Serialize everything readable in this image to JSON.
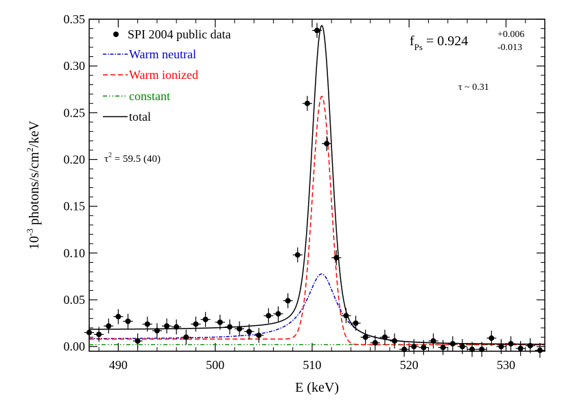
{
  "chart_data": {
    "type": "scatter",
    "title": "",
    "xlabel": "E (keV)",
    "ylabel_parts": {
      "prefix": "10",
      "exp": "-3",
      "mid": " photons/s/cm",
      "exp2": "2",
      "suffix": "/keV"
    },
    "xlim": [
      487,
      534
    ],
    "ylim": [
      -0.005,
      0.35
    ],
    "xticks": [
      490,
      500,
      510,
      520,
      530
    ],
    "xtick_labels": [
      "490",
      "500",
      "510",
      "520",
      "530"
    ],
    "yticks": [
      0.0,
      0.05,
      0.1,
      0.15,
      0.2,
      0.25,
      0.3,
      0.35
    ],
    "ytick_labels": [
      "0.00",
      "0.05",
      "0.10",
      "0.15",
      "0.20",
      "0.25",
      "0.30",
      "0.35"
    ],
    "legend": [
      {
        "label": "SPI 2004 public data",
        "style": "point",
        "color": "#000000"
      },
      {
        "label": "Warm neutral",
        "style": "dashdot-blue",
        "color": "#0000cc"
      },
      {
        "label": "Warm ionized",
        "style": "dashed-red",
        "color": "#ff0000"
      },
      {
        "label": "constant",
        "style": "dashdot-green",
        "color": "#008800"
      },
      {
        "label": "total",
        "style": "solid",
        "color": "#000000"
      }
    ],
    "annotations": {
      "fps_base": "f",
      "fps_sub": "Ps",
      "fps_eq": " = 0.924",
      "fps_plus": "+0.006",
      "fps_minus": "-0.013",
      "tau": "τ ~ 0.31",
      "chi_base": "τ",
      "chi_sup": "2",
      "chi_rest": " = 59.5 (40)"
    },
    "data_points": [
      {
        "x": 487,
        "y": 0.015
      },
      {
        "x": 488,
        "y": 0.013
      },
      {
        "x": 489,
        "y": 0.022
      },
      {
        "x": 490,
        "y": 0.032
      },
      {
        "x": 491,
        "y": 0.027
      },
      {
        "x": 492,
        "y": 0.006
      },
      {
        "x": 493,
        "y": 0.024
      },
      {
        "x": 494,
        "y": 0.017
      },
      {
        "x": 495,
        "y": 0.022
      },
      {
        "x": 496,
        "y": 0.021
      },
      {
        "x": 497,
        "y": 0.01
      },
      {
        "x": 498,
        "y": 0.024
      },
      {
        "x": 499,
        "y": 0.029
      },
      {
        "x": 500.5,
        "y": 0.026
      },
      {
        "x": 501.5,
        "y": 0.021
      },
      {
        "x": 502.5,
        "y": 0.019
      },
      {
        "x": 503.5,
        "y": 0.016
      },
      {
        "x": 504.5,
        "y": 0.012
      },
      {
        "x": 505.5,
        "y": 0.033
      },
      {
        "x": 506.5,
        "y": 0.035
      },
      {
        "x": 507.5,
        "y": 0.049
      },
      {
        "x": 508.5,
        "y": 0.098
      },
      {
        "x": 509.5,
        "y": 0.26
      },
      {
        "x": 510.5,
        "y": 0.338
      },
      {
        "x": 511.5,
        "y": 0.217
      },
      {
        "x": 512.5,
        "y": 0.095
      },
      {
        "x": 513.5,
        "y": 0.033
      },
      {
        "x": 514.5,
        "y": 0.025
      },
      {
        "x": 515.5,
        "y": 0.01
      },
      {
        "x": 516.5,
        "y": 0.004
      },
      {
        "x": 517.5,
        "y": 0.01
      },
      {
        "x": 518.5,
        "y": 0.006
      },
      {
        "x": 519.5,
        "y": -0.003
      },
      {
        "x": 520.5,
        "y": 0.0
      },
      {
        "x": 521.5,
        "y": -0.001
      },
      {
        "x": 522.5,
        "y": 0.006
      },
      {
        "x": 523.5,
        "y": -0.001
      },
      {
        "x": 524.5,
        "y": 0.003
      },
      {
        "x": 525.5,
        "y": 0.0
      },
      {
        "x": 526.5,
        "y": -0.003
      },
      {
        "x": 527.5,
        "y": -0.003
      },
      {
        "x": 528.5,
        "y": 0.009
      },
      {
        "x": 529.5,
        "y": 0.0
      },
      {
        "x": 530.5,
        "y": 0.003
      },
      {
        "x": 531.5,
        "y": -0.002
      },
      {
        "x": 532.5,
        "y": 0.001
      },
      {
        "x": 533.5,
        "y": -0.004
      }
    ],
    "xerr": 0.5,
    "yerr": 0.008,
    "model": {
      "constant": 0.002,
      "ionized_amp": 0.265,
      "ionized_center": 511.0,
      "ionized_sigma": 0.95,
      "neutral_amp": 0.073,
      "neutral_center": 511.0,
      "neutral_sigma": 1.9,
      "neutral_lowtail": 0.006,
      "neutral_edge": 510.6,
      "neutral_edge_width": 1.6,
      "ionized_lowtail": 0.006,
      "ionized_edge": 510.0,
      "ionized_edge_width": 0.45,
      "total_lowtail": 0.016
    }
  }
}
